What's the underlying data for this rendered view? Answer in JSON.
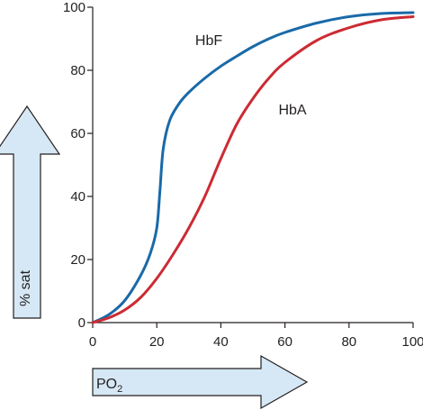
{
  "chart_data": {
    "type": "line",
    "title": "",
    "xlabel": "PO",
    "xlabel_sub": "2",
    "ylabel": "% sat",
    "xlim": [
      0,
      100
    ],
    "ylim": [
      0,
      100
    ],
    "x_ticks": [
      "0",
      "20",
      "40",
      "60",
      "80",
      "100"
    ],
    "y_ticks": [
      "0",
      "20",
      "40",
      "60",
      "80",
      "100"
    ],
    "grid": false,
    "legend": "inline labels",
    "series": [
      {
        "name": "HbF",
        "color": "#1a6aa8",
        "x": [
          0,
          5,
          10,
          15,
          18,
          20,
          21,
          22,
          24,
          27,
          30,
          35,
          40,
          45,
          50,
          55,
          60,
          70,
          80,
          90,
          100
        ],
        "y": [
          0,
          2.5,
          7,
          15,
          22,
          30,
          42,
          55,
          64,
          69.5,
          73,
          77.5,
          81.3,
          84.5,
          87.5,
          90,
          92,
          95,
          97,
          98,
          98.3
        ]
      },
      {
        "name": "HbA",
        "color": "#cc2b33",
        "x": [
          0,
          5,
          10,
          15,
          20,
          25,
          30,
          35,
          40,
          45,
          50,
          55,
          60,
          70,
          80,
          90,
          100
        ],
        "y": [
          0,
          1.5,
          4,
          8,
          14,
          21.5,
          30,
          40,
          52,
          63,
          71,
          77.5,
          82.5,
          89.5,
          93.5,
          96,
          97
        ]
      }
    ],
    "annotations": [
      {
        "text": "HbF",
        "x": 32,
        "y": 88
      },
      {
        "text": "HbA",
        "x": 58,
        "y": 66
      }
    ]
  }
}
